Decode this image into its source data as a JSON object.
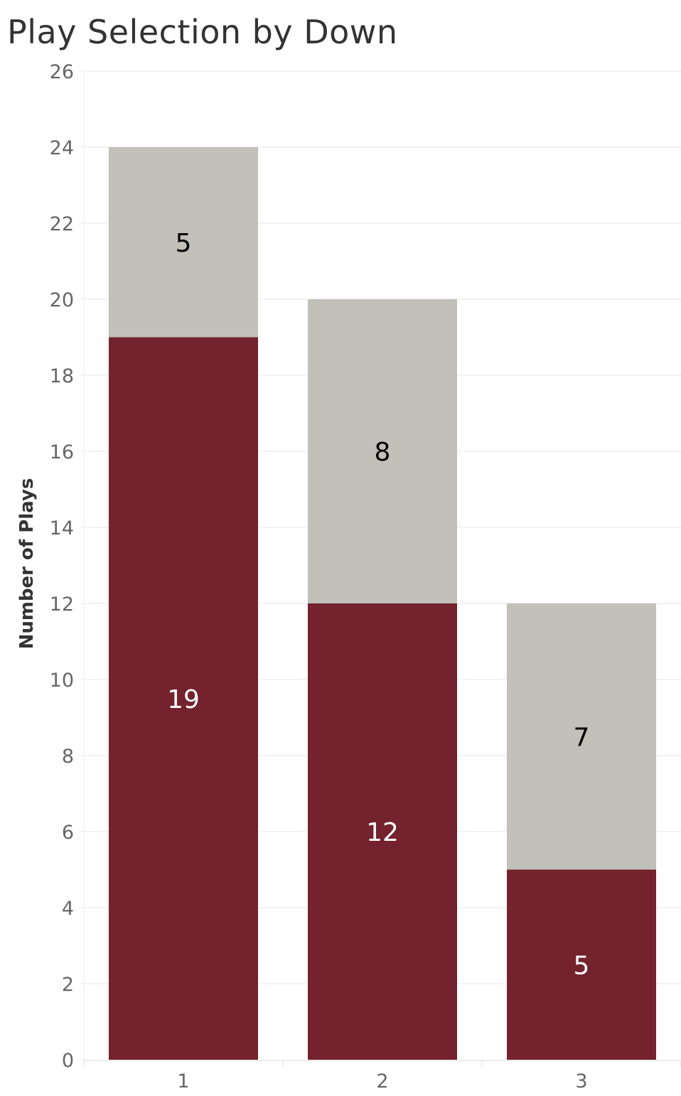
{
  "chart_data": {
    "type": "bar",
    "stacked": true,
    "title": "Play Selection by Down",
    "xlabel": "",
    "ylabel": "Number of Plays",
    "categories": [
      "1",
      "2",
      "3"
    ],
    "series": [
      {
        "values": [
          19,
          12,
          5
        ],
        "color": "#74222d",
        "label_color": "#ffffff"
      },
      {
        "values": [
          5,
          8,
          7
        ],
        "color": "#c1c0b9",
        "label_color": "#000000"
      }
    ],
    "ylim": [
      0,
      26
    ],
    "yticks": [
      0,
      2,
      4,
      6,
      8,
      10,
      12,
      14,
      16,
      18,
      20,
      22,
      24,
      26
    ],
    "grid": true,
    "legend": "none"
  }
}
